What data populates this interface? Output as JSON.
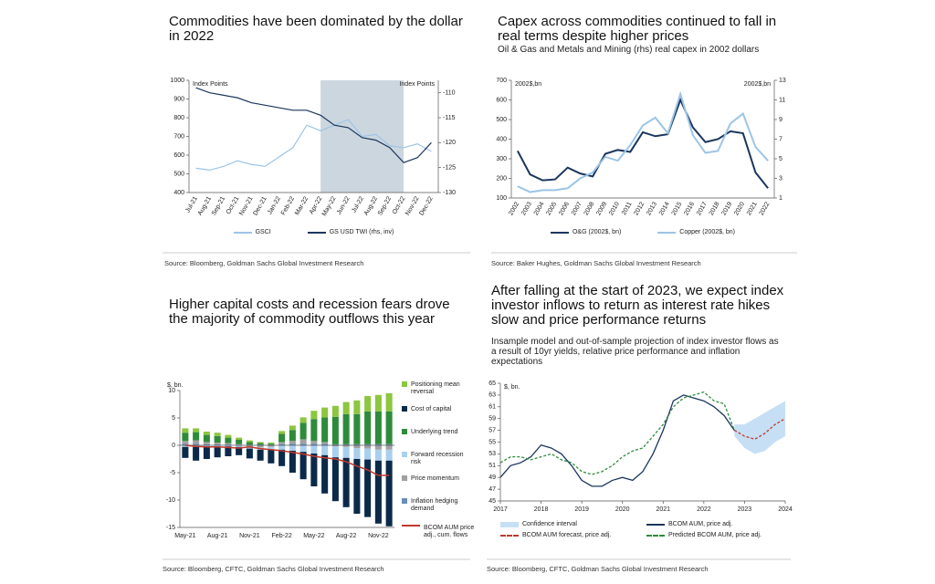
{
  "chart_data": [
    {
      "type": "line",
      "title": "Commodities have been dominated by the dollar in 2022",
      "y_label": "Index Points",
      "y2_label": "Index Points",
      "categories": [
        "Jul-21",
        "Aug-21",
        "Sep-21",
        "Oct-21",
        "Nov-21",
        "Dec-21",
        "Jan-22",
        "Feb-22",
        "Mar-22",
        "Apr-22",
        "May-22",
        "Jun-22",
        "Jul-22",
        "Aug-22",
        "Sep-22",
        "Oct-22",
        "Nov-22",
        "Dec-22"
      ],
      "ylim": [
        400,
        1000
      ],
      "yticks": [
        400,
        500,
        600,
        700,
        800,
        900,
        1000
      ],
      "y2lim": [
        -130,
        -107.5
      ],
      "y2ticks": [
        -130,
        -125,
        -120,
        -115,
        -110
      ],
      "shaded_range": [
        "Apr-22",
        "Oct-22"
      ],
      "shade_color": "#ccd6df",
      "series": [
        {
          "name": "GSCI",
          "color": "#9cc5e6",
          "values": [
            530,
            520,
            540,
            570,
            550,
            540,
            590,
            640,
            760,
            730,
            760,
            790,
            700,
            710,
            650,
            640,
            660,
            620
          ]
        },
        {
          "name": "GS USD TWI (rhs, inv)",
          "color": "#1b365d",
          "axis": "y2",
          "values": [
            -109,
            -110,
            -110.5,
            -111,
            -112,
            -112.5,
            -113,
            -113.5,
            -113.5,
            -114.5,
            -116.5,
            -117,
            -119,
            -119.5,
            -121,
            -124,
            -123,
            -120
          ]
        }
      ],
      "source": "Source: Bloomberg, Goldman Sachs Global Investment Research"
    },
    {
      "type": "line",
      "title": "Capex across commodities continued to fall in real terms despite higher prices",
      "subtitle": "Oil & Gas and Metals and Mining (rhs) real capex in 2002 dollars",
      "y_label": "2002$,bn",
      "y2_label": "2002$,bn",
      "categories": [
        "2002",
        "2003",
        "2004",
        "2005",
        "2006",
        "2007",
        "2008",
        "2009",
        "2010",
        "2011",
        "2012",
        "2013",
        "2014",
        "2015",
        "2016",
        "2017",
        "2018",
        "2019",
        "2020",
        "2021",
        "2022"
      ],
      "ylim": [
        100,
        700
      ],
      "yticks": [
        100,
        200,
        300,
        400,
        500,
        600,
        700
      ],
      "y2lim": [
        1,
        13
      ],
      "y2ticks": [
        1,
        3,
        5,
        7,
        9,
        11,
        13
      ],
      "series": [
        {
          "name": "O&G (2002$, bn)",
          "color": "#1b365d",
          "values": [
            340,
            220,
            190,
            195,
            255,
            225,
            210,
            325,
            345,
            335,
            435,
            415,
            425,
            600,
            460,
            385,
            400,
            440,
            430,
            230,
            150
          ]
        },
        {
          "name": "Copper (2002$, bn)",
          "color": "#9cc5e6",
          "axis": "y2",
          "values": [
            2.2,
            1.6,
            1.8,
            1.8,
            2,
            3,
            3.6,
            5.2,
            4.8,
            6.4,
            8.4,
            9.2,
            7.6,
            11.6,
            7.4,
            5.6,
            5.8,
            8.6,
            9.6,
            6.2,
            4.8
          ]
        }
      ],
      "source": "Source: Baker Hughes, Goldman Sachs Global Investment Research"
    },
    {
      "type": "bar",
      "stacked": true,
      "title": "Higher capital costs and recession fears drove the majority of commodity outflows this year",
      "y_label": "$, bn.",
      "categories": [
        "May-21",
        null,
        null,
        "Aug-21",
        null,
        null,
        "Nov-21",
        null,
        null,
        "Feb-22",
        null,
        null,
        "May-22",
        null,
        null,
        "Aug-22",
        null,
        null,
        "Nov-22",
        null
      ],
      "ylim": [
        -15,
        10
      ],
      "yticks": [
        -15,
        -10,
        -5,
        0,
        5,
        10
      ],
      "series": [
        {
          "name": "Positioning mean reversal",
          "color": "#8dc63f",
          "values": [
            0.8,
            0.7,
            0.6,
            0.6,
            0.5,
            0.4,
            0.3,
            0.2,
            0.2,
            0.5,
            0.8,
            1,
            1.5,
            1.8,
            2,
            2.2,
            2.5,
            2.8,
            3,
            3.3
          ]
        },
        {
          "name": "Cost of capital",
          "color": "#0b2a4a",
          "values": [
            -2,
            -2.5,
            -2.3,
            -2,
            -1.8,
            -1.5,
            -1.8,
            -2,
            -2.5,
            -3,
            -4,
            -5,
            -6,
            -7,
            -8,
            -9,
            -10,
            -10.5,
            -11.5,
            -12
          ]
        },
        {
          "name": "Underlying trend",
          "color": "#2e8b3a",
          "values": [
            1.5,
            1.5,
            1.3,
            1.2,
            1,
            0.8,
            0.5,
            0.3,
            0.2,
            1.5,
            2,
            3,
            4,
            4.5,
            5,
            5.5,
            5.5,
            6,
            6,
            6
          ]
        },
        {
          "name": "Forward recession risk",
          "color": "#a9cfee",
          "values": [
            -0.3,
            -0.3,
            -0.2,
            -0.2,
            -0.2,
            -0.3,
            -0.3,
            -0.4,
            -0.5,
            -0.8,
            -1,
            -1.2,
            -1.5,
            -1.8,
            -2,
            -2,
            -2,
            -2,
            -2,
            -2
          ]
        },
        {
          "name": "Price momentum",
          "color": "#a0a0a0",
          "values": [
            0.5,
            0.6,
            0.4,
            0.3,
            0.2,
            0.1,
            -0.3,
            -0.4,
            -0.3,
            0.4,
            0.5,
            0.8,
            0.5,
            0.3,
            -0.2,
            -0.3,
            -0.5,
            -0.6,
            -0.8,
            -0.8
          ]
        },
        {
          "name": "Inflation hedging demand",
          "color": "#6b8fb5",
          "values": [
            0.3,
            0.3,
            0.2,
            0.2,
            0.2,
            0.1,
            0.1,
            0.1,
            0.1,
            0.2,
            0.3,
            0.3,
            0.3,
            0.3,
            0.2,
            0.2,
            0.2,
            0.2,
            0.2,
            0.2
          ]
        },
        {
          "name": "BCOM AUM price adj., cum. flows",
          "color": "#c0392b",
          "type": "line",
          "values": [
            0,
            -0.2,
            -0.3,
            -0.3,
            -0.4,
            -0.5,
            -0.3,
            -0.6,
            -0.8,
            -1,
            -1.3,
            -1.6,
            -2,
            -2.3,
            -2.5,
            -3,
            -3.8,
            -4.5,
            -5.5,
            -5.5
          ]
        }
      ],
      "source": "Source: Bloomberg, CFTC, Goldman Sachs Global Investment Research"
    },
    {
      "type": "line",
      "title": "After falling at the start of 2023, we expect index investor inflows to return as interest rate hikes slow and price performance returns",
      "subtitle": "Insample model and out-of-sample projection of index investor flows as a result of 10yr yields, relative price performance and inflation expectations",
      "y_label": "$, bn.",
      "x": [
        2017,
        2017.25,
        2017.5,
        2017.75,
        2018,
        2018.25,
        2018.5,
        2018.75,
        2019,
        2019.25,
        2019.5,
        2019.75,
        2020,
        2020.25,
        2020.5,
        2020.75,
        2021,
        2021.25,
        2021.5,
        2021.75,
        2022,
        2022.25,
        2022.5,
        2022.75,
        2023,
        2023.25,
        2023.5,
        2023.75,
        2024
      ],
      "xlim": [
        2017,
        2024
      ],
      "xticks": [
        2017,
        2018,
        2019,
        2020,
        2021,
        2022,
        2023,
        2024
      ],
      "ylim": [
        45,
        65
      ],
      "yticks": [
        45,
        47,
        49,
        51,
        53,
        55,
        57,
        59,
        61,
        63,
        65
      ],
      "band": {
        "name": "Confidence interval",
        "color": "#c6dff5",
        "lower": [
          null,
          null,
          null,
          null,
          null,
          null,
          null,
          null,
          null,
          null,
          null,
          null,
          null,
          null,
          null,
          null,
          null,
          null,
          null,
          null,
          null,
          null,
          null,
          56,
          54,
          53,
          53.5,
          55,
          56
        ],
        "upper": [
          null,
          null,
          null,
          null,
          null,
          null,
          null,
          null,
          null,
          null,
          null,
          null,
          null,
          null,
          null,
          null,
          null,
          null,
          null,
          null,
          null,
          null,
          null,
          58,
          58,
          59,
          60,
          61,
          62
        ]
      },
      "series": [
        {
          "name": "BCOM AUM, price adj.",
          "color": "#1b365d",
          "values": [
            49,
            51,
            51.5,
            52.5,
            54.5,
            54,
            53,
            51,
            48.5,
            47.5,
            47.5,
            48.5,
            49,
            48.5,
            50,
            53,
            57,
            62,
            63,
            62.5,
            62,
            61,
            59.5,
            57,
            null,
            null,
            null,
            null,
            null
          ]
        },
        {
          "name": "BCOM AUM forecast, price adj.",
          "color": "#c0392b",
          "dash": true,
          "values": [
            null,
            null,
            null,
            null,
            null,
            null,
            null,
            null,
            null,
            null,
            null,
            null,
            null,
            null,
            null,
            null,
            null,
            null,
            null,
            null,
            null,
            null,
            null,
            57,
            56,
            55.5,
            56.5,
            58,
            59
          ]
        },
        {
          "name": "Predicted BCOM AUM, price adj.",
          "color": "#2e8b3a",
          "dash": true,
          "values": [
            51.5,
            52.5,
            52.5,
            52,
            52.5,
            53,
            52,
            51.5,
            50,
            49.5,
            50,
            51,
            52.5,
            53.5,
            54,
            56,
            58,
            61,
            62.5,
            63,
            63.5,
            62,
            61.5,
            57,
            null,
            null,
            null,
            null,
            null
          ]
        }
      ],
      "source": "Source: Bloomberg, CFTC, Goldman Sachs Global Investment Research"
    }
  ]
}
